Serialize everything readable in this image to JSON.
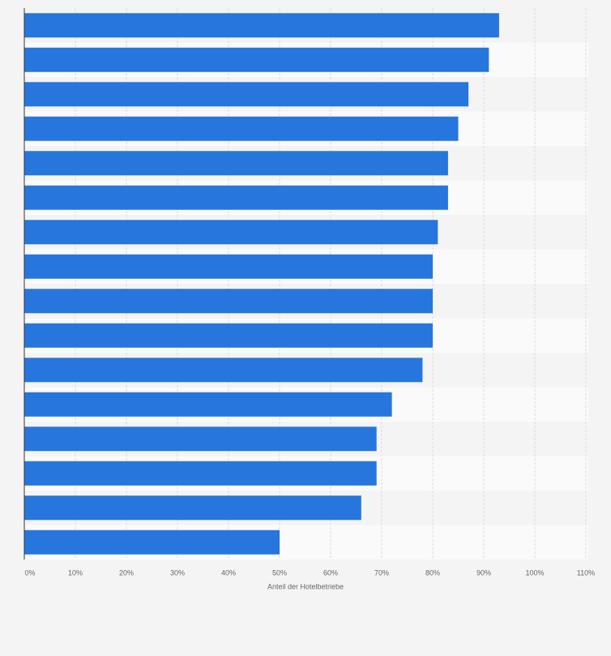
{
  "chart_data": {
    "type": "barh",
    "xlabel": "Anteil der Hotelbetriebe",
    "categories": [
      null,
      null,
      null,
      null,
      null,
      null,
      null,
      null,
      null,
      null,
      null,
      null,
      null,
      null,
      null,
      null
    ],
    "values": [
      93,
      91,
      87,
      85,
      83,
      83,
      81,
      80,
      80,
      80,
      78,
      72,
      69,
      69,
      66,
      50
    ],
    "color": "#2776dd",
    "xlim": [
      0,
      110
    ],
    "xticks": [
      {
        "value": 0,
        "label": "0%"
      },
      {
        "value": 10,
        "label": "10%"
      },
      {
        "value": 20,
        "label": "20%"
      },
      {
        "value": 30,
        "label": "30%"
      },
      {
        "value": 40,
        "label": "40%"
      },
      {
        "value": 50,
        "label": "50%"
      },
      {
        "value": 60,
        "label": "60%"
      },
      {
        "value": 70,
        "label": "70%"
      },
      {
        "value": 80,
        "label": "80%"
      },
      {
        "value": 90,
        "label": "90%"
      },
      {
        "value": 100,
        "label": "100%"
      },
      {
        "value": 110,
        "label": "110%"
      }
    ],
    "grid": true
  }
}
